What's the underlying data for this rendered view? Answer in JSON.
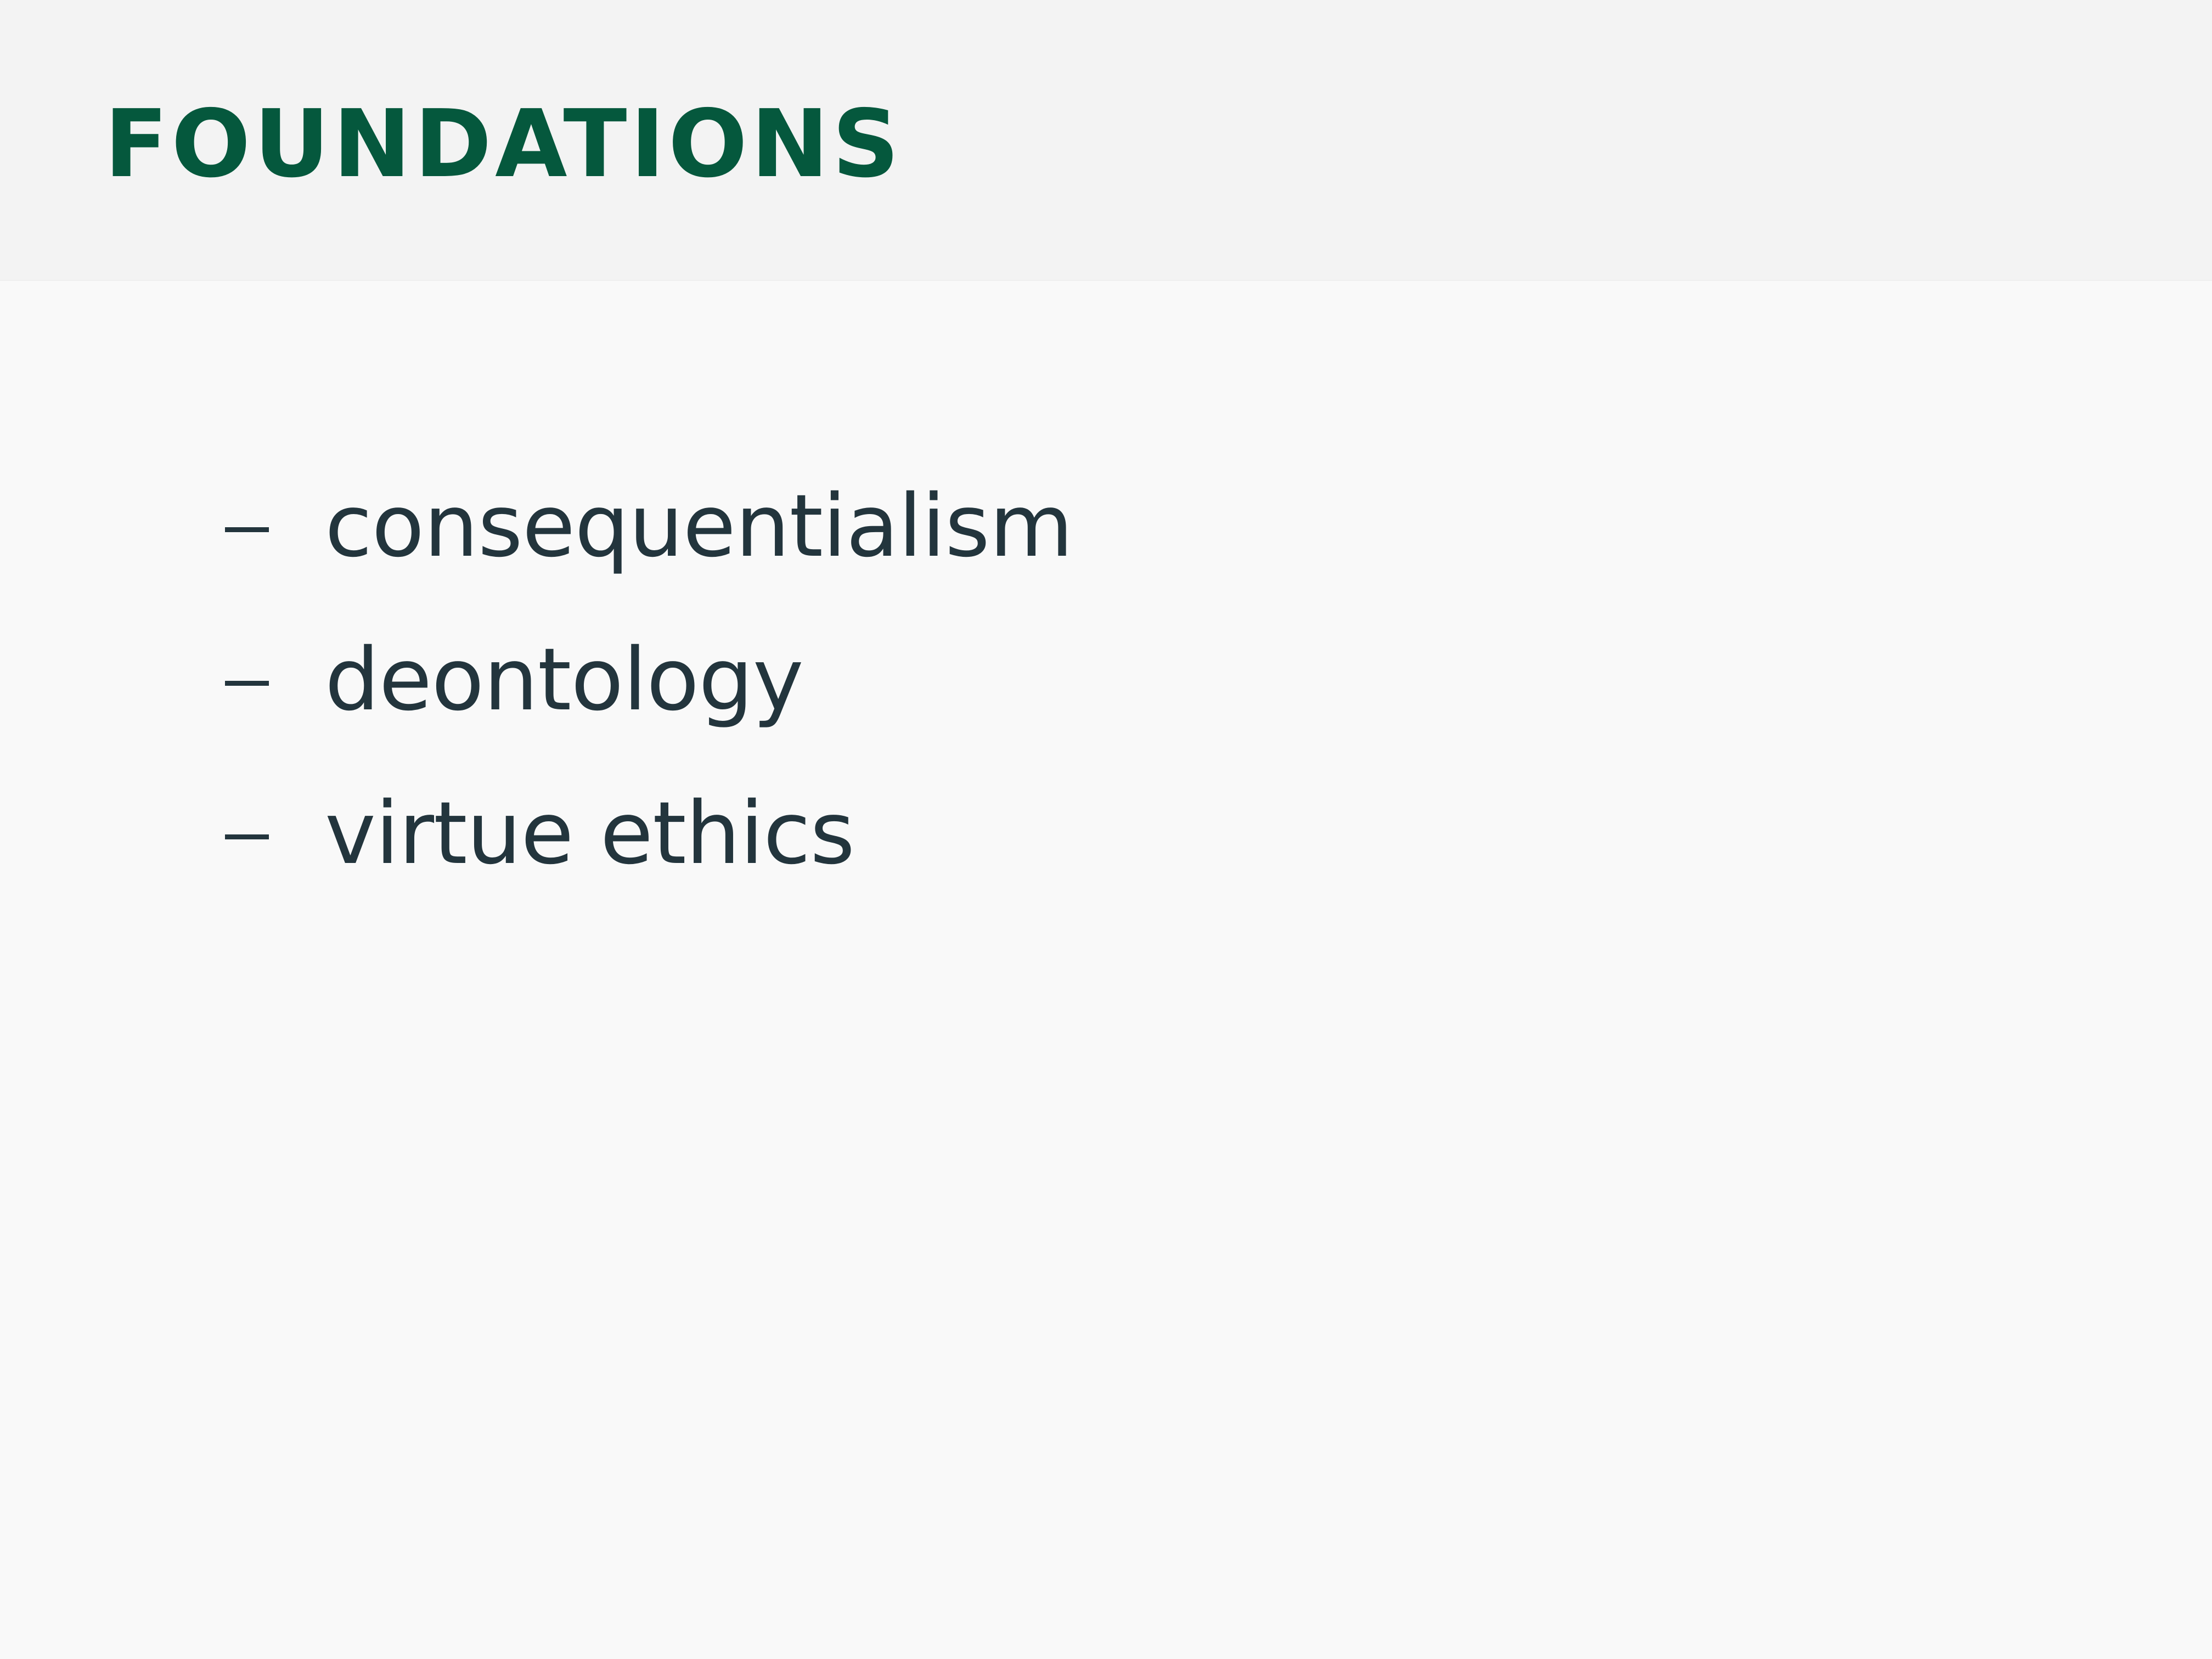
{
  "slide": {
    "title": "FOUNDATIONS",
    "bullet_marker": "–",
    "bullets": [
      "consequentialism",
      "deontology",
      "virtue ethics"
    ]
  },
  "colors": {
    "title": "#05583d",
    "body_text": "#23353d",
    "header_background": "#f3f3f3",
    "page_background": "#f9f9f9"
  }
}
